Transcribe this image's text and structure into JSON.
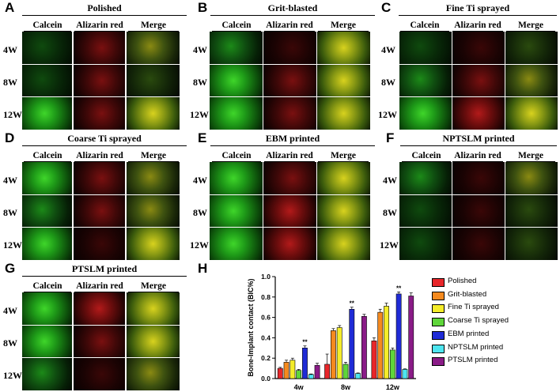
{
  "panels": [
    {
      "label": "A",
      "title": "Polished",
      "columns": [
        "Calcein",
        "Alizarin red",
        "Merge"
      ],
      "rows": [
        "4W",
        "8W",
        "12W"
      ]
    },
    {
      "label": "B",
      "title": "Grit-blasted",
      "columns": [
        "Calcein",
        "Alizarin red",
        "Merge"
      ],
      "rows": [
        "4W",
        "8W",
        "12W"
      ]
    },
    {
      "label": "C",
      "title": "Fine Ti sprayed",
      "columns": [
        "Calcein",
        "Alizarin red",
        "Merge"
      ],
      "rows": [
        "4W",
        "8W",
        "12W"
      ]
    },
    {
      "label": "D",
      "title": "Coarse Ti sprayed",
      "columns": [
        "Calcein",
        "Alizarin red",
        "Merge"
      ],
      "rows": [
        "4W",
        "8W",
        "12W"
      ]
    },
    {
      "label": "E",
      "title": "EBM printed",
      "columns": [
        "Calcein",
        "Alizarin red",
        "Merge"
      ],
      "rows": [
        "4W",
        "8W",
        "12W"
      ]
    },
    {
      "label": "F",
      "title": "NPTSLM printed",
      "columns": [
        "Calcein",
        "Alizarin red",
        "Merge"
      ],
      "rows": [
        "4W",
        "8W",
        "12W"
      ]
    },
    {
      "label": "G",
      "title": "PTSLM printed",
      "columns": [
        "Calcein",
        "Alizarin red",
        "Merge"
      ],
      "rows": [
        "4W",
        "8W",
        "12W"
      ]
    }
  ],
  "chart_label": "H",
  "chart_data": {
    "type": "bar",
    "ylabel": "Bone-Implant contact (BIC%)",
    "xlabel": "",
    "categories": [
      "4w",
      "8w",
      "12w"
    ],
    "ylim": [
      0,
      1.0
    ],
    "yticks": [
      "0.0",
      "0.2",
      "0.4",
      "0.6",
      "0.8",
      "1.0"
    ],
    "series": [
      {
        "name": "Polished",
        "color": "#e8262a",
        "values": [
          0.1,
          0.14,
          0.37
        ],
        "err": [
          0.01,
          0.1,
          0.03
        ]
      },
      {
        "name": "Grit-blasted",
        "color": "#f58a1f",
        "values": [
          0.16,
          0.47,
          0.65
        ],
        "err": [
          0.02,
          0.02,
          0.03
        ]
      },
      {
        "name": "Fine Ti sprayed",
        "color": "#f4ec2a",
        "values": [
          0.18,
          0.5,
          0.71
        ],
        "err": [
          0.02,
          0.02,
          0.03
        ]
      },
      {
        "name": "Coarse Ti sprayed",
        "color": "#5fd63a",
        "values": [
          0.08,
          0.14,
          0.28
        ],
        "err": [
          0.01,
          0.02,
          0.02
        ]
      },
      {
        "name": "EBM printed",
        "color": "#1f2bd6",
        "values": [
          0.3,
          0.68,
          0.83
        ],
        "err": [
          0.02,
          0.02,
          0.02
        ]
      },
      {
        "name": "NPTSLM printed",
        "color": "#4ee6f0",
        "values": [
          0.04,
          0.05,
          0.09
        ],
        "err": [
          0.005,
          0.005,
          0.005
        ]
      },
      {
        "name": "PTSLM printed",
        "color": "#8a1b87",
        "values": [
          0.13,
          0.61,
          0.81
        ],
        "err": [
          0.02,
          0.02,
          0.03
        ]
      }
    ],
    "annotations": [
      {
        "text": "**",
        "category": "4w",
        "series": "EBM printed"
      },
      {
        "text": "**",
        "category": "8w",
        "series": "EBM printed"
      },
      {
        "text": "**",
        "category": "12w",
        "series": "EBM printed"
      }
    ],
    "legend_position": "right"
  }
}
